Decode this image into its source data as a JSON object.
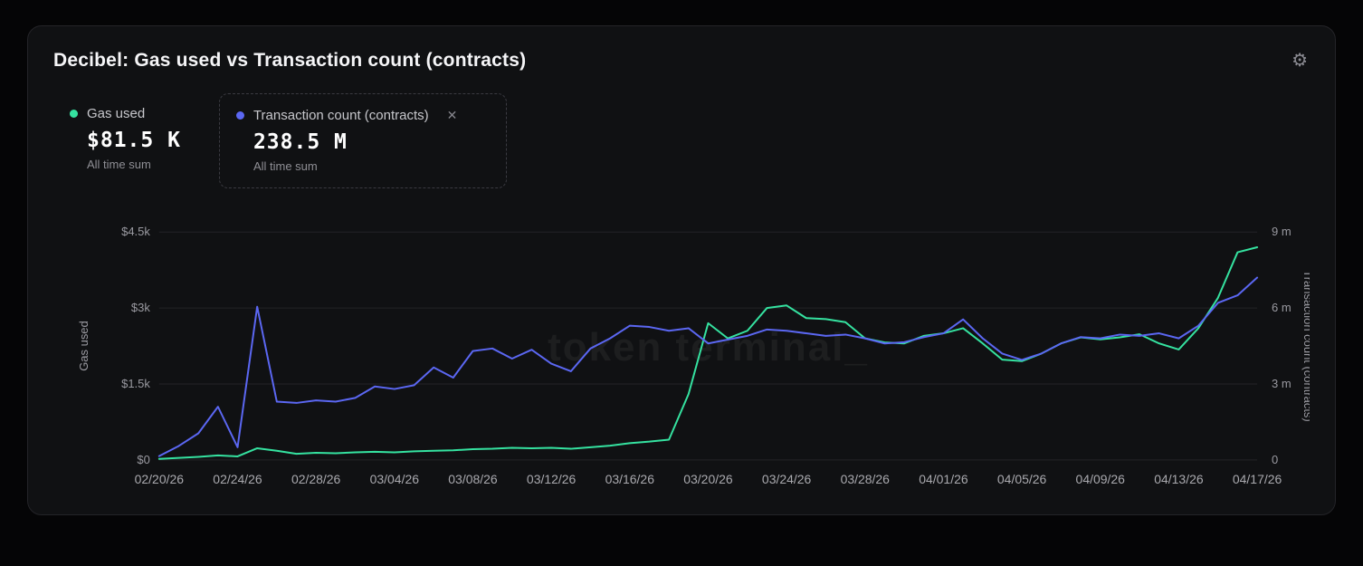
{
  "header": {
    "title": "Decibel: Gas used vs Transaction count (contracts)",
    "settings_icon": "gear-icon"
  },
  "legend": [
    {
      "label": "Gas used",
      "value": "$81.5 K",
      "sublabel": "All time sum",
      "color": "#35e2a0"
    },
    {
      "label": "Transaction count (contracts)",
      "value": "238.5 M",
      "sublabel": "All time sum",
      "color": "#5b67f2",
      "close_icon": "✕"
    }
  ],
  "chart_data": {
    "type": "line",
    "watermark": "token terminal_",
    "grid_color": "#232327",
    "x_tick_step": 4,
    "x": [
      "02/20/26",
      "02/21/26",
      "02/22/26",
      "02/23/26",
      "02/24/26",
      "02/25/26",
      "02/26/26",
      "02/27/26",
      "02/28/26",
      "03/01/26",
      "03/02/26",
      "03/03/26",
      "03/04/26",
      "03/05/26",
      "03/06/26",
      "03/07/26",
      "03/08/26",
      "03/09/26",
      "03/10/26",
      "03/11/26",
      "03/12/26",
      "03/13/26",
      "03/14/26",
      "03/15/26",
      "03/16/26",
      "03/17/26",
      "03/18/26",
      "03/19/26",
      "03/20/26",
      "03/21/26",
      "03/22/26",
      "03/23/26",
      "03/24/26",
      "03/25/26",
      "03/26/26",
      "03/27/26",
      "03/28/26",
      "03/29/26",
      "03/30/26",
      "03/31/26",
      "04/01/26",
      "04/02/26",
      "04/03/26",
      "04/04/26",
      "04/05/26",
      "04/06/26",
      "04/07/26",
      "04/08/26",
      "04/09/26",
      "04/10/26",
      "04/11/26",
      "04/12/26",
      "04/13/26",
      "04/14/26",
      "04/15/26",
      "04/16/26",
      "04/17/26"
    ],
    "x_tick_labels": [
      "02/20/26",
      "02/24/26",
      "02/28/26",
      "03/04/26",
      "03/08/26",
      "03/12/26",
      "03/16/26",
      "03/20/26",
      "03/24/26",
      "03/28/26",
      "04/01/26",
      "04/05/26",
      "04/09/26",
      "04/13/26",
      "04/17/26"
    ],
    "left_axis": {
      "label": "Gas used",
      "ticks": [
        "$0",
        "$1.5k",
        "$3k",
        "$4.5k"
      ],
      "tick_values": [
        0,
        1500,
        3000,
        4500
      ],
      "range": [
        0,
        4500
      ]
    },
    "right_axis": {
      "label": "Transaction count (contracts)",
      "ticks": [
        "0",
        "3 m",
        "6 m",
        "9 m"
      ],
      "tick_values": [
        0,
        3,
        6,
        9
      ],
      "range": [
        0,
        9
      ]
    },
    "series": [
      {
        "name": "Gas used",
        "data_name": "gas-used-line",
        "axis": "left",
        "color": "#35e2a0",
        "unit": "USD",
        "values": [
          20,
          40,
          60,
          90,
          70,
          230,
          180,
          120,
          140,
          130,
          150,
          160,
          150,
          170,
          180,
          190,
          210,
          220,
          240,
          230,
          240,
          220,
          250,
          280,
          330,
          360,
          400,
          1300,
          2700,
          2400,
          2550,
          3000,
          3050,
          2800,
          2780,
          2720,
          2400,
          2320,
          2300,
          2450,
          2500,
          2600,
          2300,
          1980,
          1950,
          2100,
          2300,
          2420,
          2380,
          2420,
          2480,
          2300,
          2180,
          2600,
          3200,
          4100,
          4200
        ]
      },
      {
        "name": "Transaction count (contracts)",
        "data_name": "transaction-count-line",
        "axis": "right",
        "color": "#5b67f2",
        "unit": "millions",
        "values": [
          0.15,
          0.55,
          1.05,
          2.1,
          0.5,
          6.05,
          2.3,
          2.25,
          2.35,
          2.3,
          2.45,
          2.9,
          2.8,
          2.95,
          3.65,
          3.25,
          4.3,
          4.4,
          4.0,
          4.35,
          3.8,
          3.5,
          4.4,
          4.8,
          5.3,
          5.25,
          5.1,
          5.2,
          4.6,
          4.75,
          4.9,
          5.15,
          5.1,
          5.0,
          4.9,
          4.95,
          4.8,
          4.6,
          4.65,
          4.85,
          5.0,
          5.55,
          4.8,
          4.2,
          3.95,
          4.2,
          4.6,
          4.85,
          4.8,
          4.95,
          4.9,
          5.0,
          4.8,
          5.3,
          6.2,
          6.5,
          7.2
        ]
      }
    ]
  }
}
